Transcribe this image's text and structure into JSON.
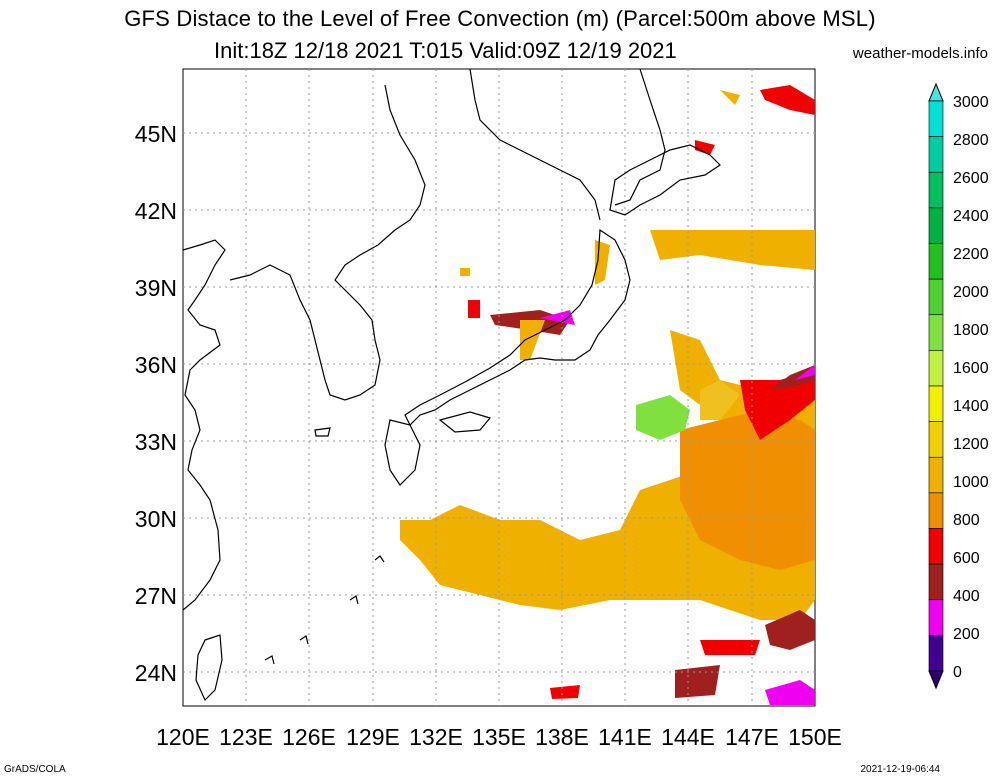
{
  "title_line1": "GFS Distace to the Level of Free Convection (m) (Parcel:500m above MSL)",
  "title_line2": "Init:18Z 12/18 2021 T:015 Valid:09Z 12/19 2021",
  "site": "weather-models.info",
  "footer_left": "GrADS/COLA",
  "footer_right": "2021-12-19-06:44",
  "lat_labels": [
    "45N",
    "42N",
    "39N",
    "36N",
    "33N",
    "30N",
    "27N",
    "24N"
  ],
  "lon_labels": [
    "120E",
    "123E",
    "126E",
    "129E",
    "132E",
    "135E",
    "138E",
    "141E",
    "144E",
    "147E",
    "150E"
  ],
  "colorbar": {
    "labels": [
      "3000",
      "2800",
      "2600",
      "2400",
      "2200",
      "2000",
      "1800",
      "1600",
      "1400",
      "1200",
      "1000",
      "800",
      "600",
      "400",
      "200",
      "0"
    ],
    "colors": [
      "#00e0d0",
      "#00cca0",
      "#00c060",
      "#00b040",
      "#20c020",
      "#50d030",
      "#80e040",
      "#c0f040",
      "#f0f000",
      "#f0d000",
      "#f0b000",
      "#f09000",
      "#f00000",
      "#a02020",
      "#f000f0",
      "#400090"
    ],
    "top_arrow_color": "#40e8e0",
    "bottom_arrow_color": "#300070"
  }
}
